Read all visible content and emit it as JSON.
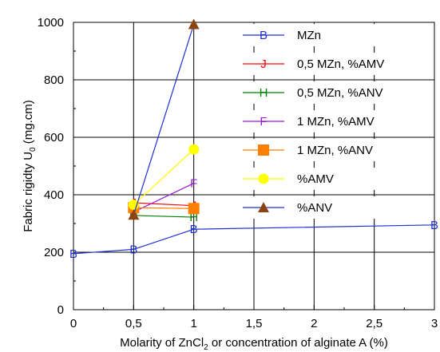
{
  "chart_data": {
    "type": "line",
    "xlabel_prefix": "Molarity of ZnCl",
    "xlabel_sub": "2",
    "xlabel_suffix": " or concentration of alginate A (%)",
    "ylabel_prefix": "Fabric rigidty U",
    "ylabel_sub": "0",
    "ylabel_suffix": " (mg.cm)",
    "xlim": [
      0,
      3
    ],
    "ylim": [
      0,
      1000
    ],
    "x_ticks": [
      0,
      0.5,
      1,
      1.5,
      2,
      2.5,
      3
    ],
    "x_tick_labels": [
      "0",
      "0,5",
      "1",
      "1,5",
      "2",
      "2,5",
      "3"
    ],
    "y_ticks": [
      0,
      200,
      400,
      600,
      800,
      1000
    ],
    "y_tick_labels": [
      "0",
      "200",
      "400",
      "600",
      "800",
      "1000"
    ],
    "grid": true,
    "legend_position": "top-right",
    "series": [
      {
        "name": "MZn",
        "color": "#1f2fd6",
        "marker": "B",
        "x": [
          0,
          0.5,
          1,
          3
        ],
        "y": [
          195,
          210,
          280,
          295
        ]
      },
      {
        "name": "0,5 MZn, %AMV",
        "color": "#ff0000",
        "marker": "J",
        "x": [
          0.5,
          1
        ],
        "y": [
          372,
          362
        ]
      },
      {
        "name": "0,5 MZn, %ANV",
        "color": "#008000",
        "marker": "H",
        "x": [
          0.5,
          1
        ],
        "y": [
          328,
          322
        ]
      },
      {
        "name": "1 MZn, %AMV",
        "color": "#9a1bd6",
        "marker": "F",
        "x": [
          0.5,
          1
        ],
        "y": [
          340,
          440
        ]
      },
      {
        "name": "1 MZn, %ANV",
        "color": "#ff7f00",
        "marker": "square",
        "x": [
          0.5,
          1
        ],
        "y": [
          355,
          352
        ]
      },
      {
        "name": "%AMV",
        "color": "#ffff00",
        "marker": "circle",
        "x": [
          0.5,
          1
        ],
        "y": [
          365,
          558
        ]
      },
      {
        "name": "%ANV",
        "color": "#8b4513",
        "line_color": "#1f2fd6",
        "marker": "triangle",
        "x": [
          0.5,
          1
        ],
        "y": [
          330,
          993
        ]
      }
    ]
  }
}
